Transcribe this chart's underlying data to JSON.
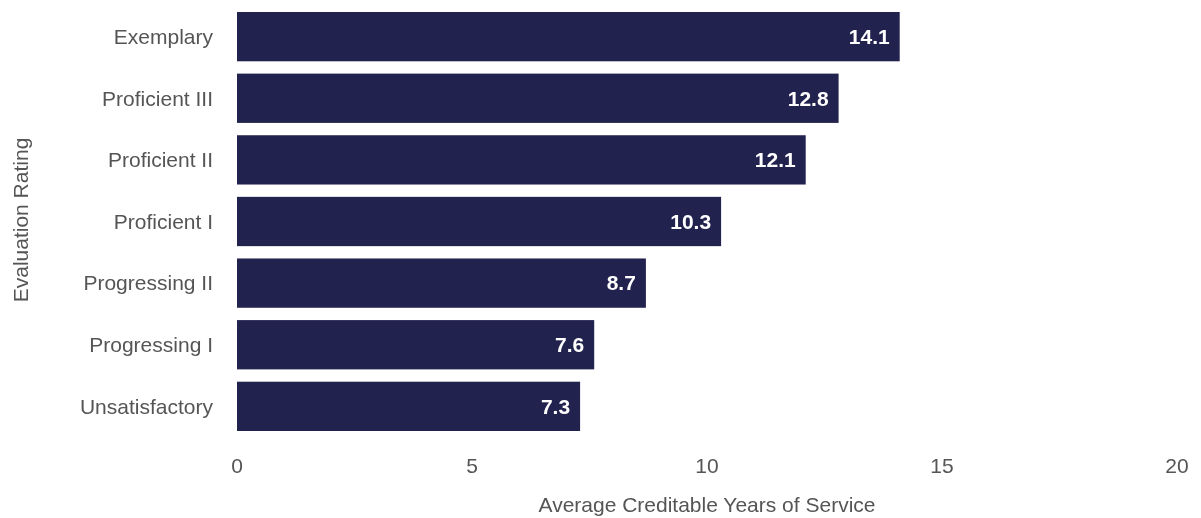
{
  "chart_data": {
    "type": "bar",
    "orientation": "horizontal",
    "xlabel": "Average Creditable Years of Service",
    "ylabel": "Evaluation Rating",
    "categories": [
      "Exemplary",
      "Proficient III",
      "Proficient II",
      "Proficient I",
      "Progressing II",
      "Progressing I",
      "Unsatisfactory"
    ],
    "values": [
      14.1,
      12.8,
      12.1,
      10.3,
      8.7,
      7.6,
      7.3
    ],
    "color": "#22224f",
    "xlim": [
      0,
      20
    ],
    "xticks": [
      0,
      5,
      10,
      15,
      20
    ],
    "data_labels": true,
    "grid": false
  }
}
